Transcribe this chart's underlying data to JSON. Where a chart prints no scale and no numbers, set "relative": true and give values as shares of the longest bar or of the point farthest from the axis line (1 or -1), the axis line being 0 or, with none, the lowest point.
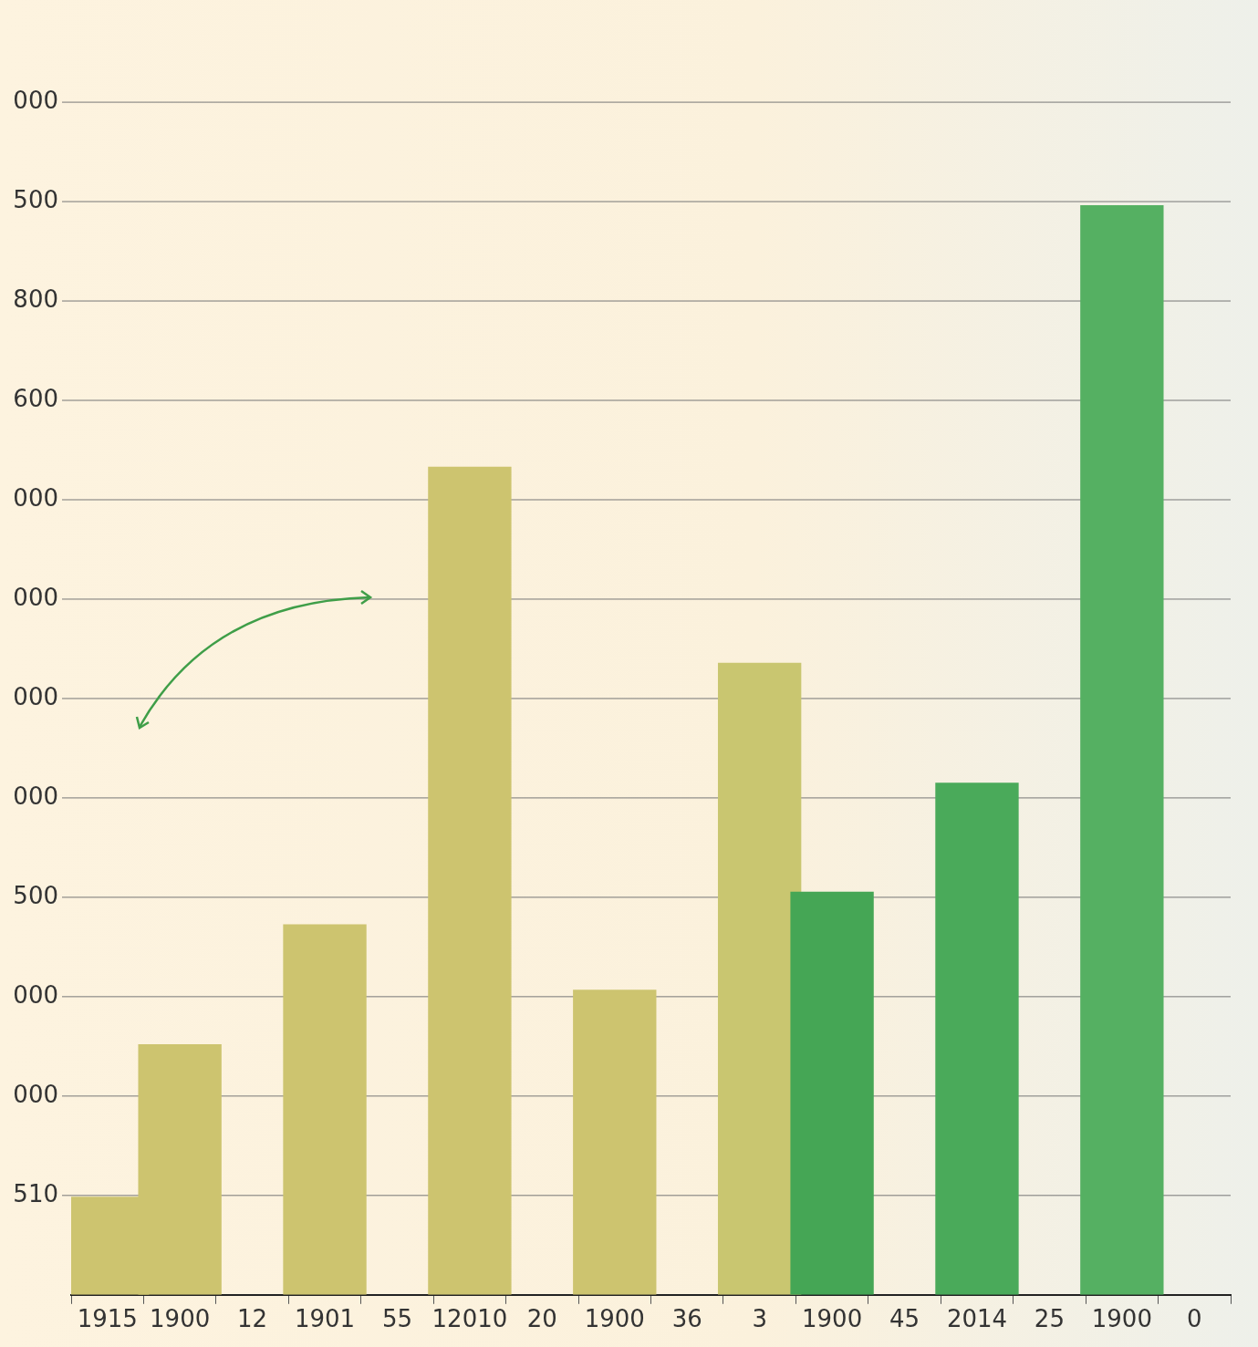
{
  "chart_data": {
    "type": "bar",
    "categories": [
      "1915",
      "1900",
      "12",
      "1901",
      "55",
      "12010",
      "20",
      "1900",
      "36",
      "3",
      "1900",
      "45",
      "2014",
      "25",
      "1900",
      "0"
    ],
    "values": [
      0.09,
      0.23,
      null,
      0.34,
      null,
      0.76,
      null,
      0.28,
      null,
      0.58,
      0.37,
      null,
      0.47,
      null,
      1,
      null
    ],
    "colors": [
      "#cdc46f",
      "#cdc46f",
      null,
      "#cdc46f",
      null,
      "#cdc46f",
      null,
      "#cdc46f",
      null,
      "#c9c670",
      "#45a655",
      null,
      "#4aaa5a",
      null,
      "#55b062",
      null
    ],
    "relative": true,
    "annotations": [
      "000",
      "500",
      "800",
      "600",
      "000",
      "000",
      "000",
      "000",
      "500",
      "000",
      "000",
      "510"
    ],
    "grid": "y"
  }
}
